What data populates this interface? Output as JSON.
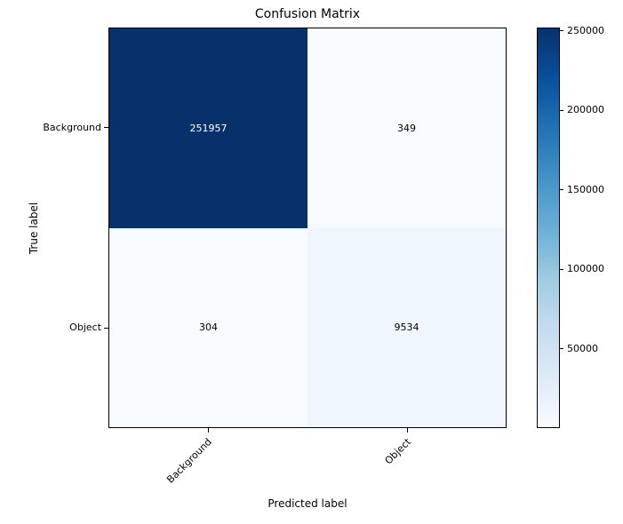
{
  "chart_data": {
    "type": "heatmap",
    "title": "Confusion Matrix",
    "xlabel": "Predicted label",
    "ylabel": "True label",
    "categories": [
      "Background",
      "Object"
    ],
    "matrix": [
      [
        251957,
        349
      ],
      [
        304,
        9534
      ]
    ],
    "vmin": 304,
    "vmax": 251957,
    "colormap": "Blues",
    "colorbar_ticks": [
      50000,
      100000,
      150000,
      200000,
      250000
    ],
    "colormap_stops": [
      [
        0.0,
        "#f7fbff"
      ],
      [
        0.125,
        "#deebf7"
      ],
      [
        0.25,
        "#c6dbef"
      ],
      [
        0.375,
        "#9ecae1"
      ],
      [
        0.5,
        "#6baed6"
      ],
      [
        0.625,
        "#4292c6"
      ],
      [
        0.75,
        "#2171b5"
      ],
      [
        0.875,
        "#08519c"
      ],
      [
        1.0,
        "#08306b"
      ]
    ],
    "text_color_dark_cell": "#ffffff",
    "text_color_light_cell": "#000000",
    "legend_position": "right-colorbar",
    "grid": false
  }
}
